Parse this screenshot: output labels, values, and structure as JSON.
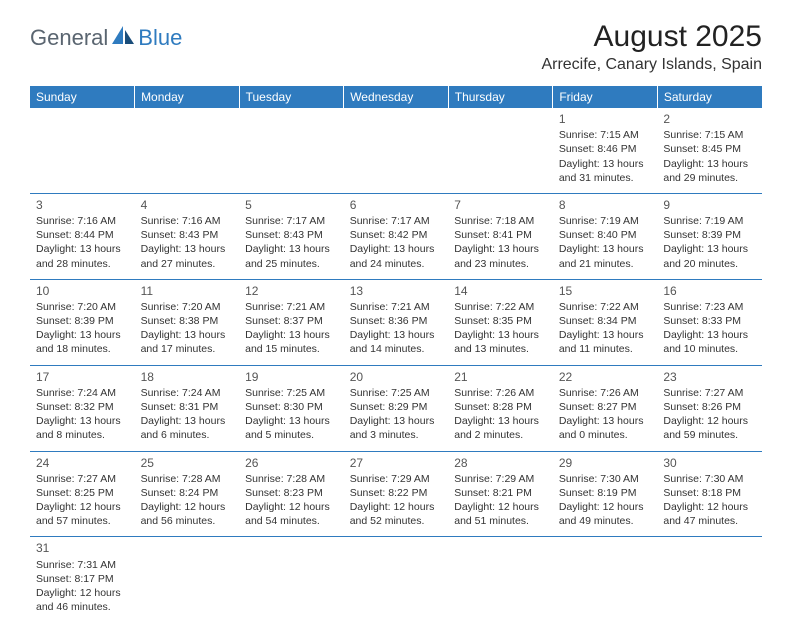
{
  "logo": {
    "text1": "General",
    "text2": "Blue"
  },
  "title": "August 2025",
  "location": "Arrecife, Canary Islands, Spain",
  "colors": {
    "header_bg": "#2f7bbf",
    "header_text": "#ffffff",
    "border": "#2f7bbf"
  },
  "weekdays": [
    "Sunday",
    "Monday",
    "Tuesday",
    "Wednesday",
    "Thursday",
    "Friday",
    "Saturday"
  ],
  "weeks": [
    [
      null,
      null,
      null,
      null,
      null,
      {
        "n": "1",
        "sr": "Sunrise: 7:15 AM",
        "ss": "Sunset: 8:46 PM",
        "d1": "Daylight: 13 hours",
        "d2": "and 31 minutes."
      },
      {
        "n": "2",
        "sr": "Sunrise: 7:15 AM",
        "ss": "Sunset: 8:45 PM",
        "d1": "Daylight: 13 hours",
        "d2": "and 29 minutes."
      }
    ],
    [
      {
        "n": "3",
        "sr": "Sunrise: 7:16 AM",
        "ss": "Sunset: 8:44 PM",
        "d1": "Daylight: 13 hours",
        "d2": "and 28 minutes."
      },
      {
        "n": "4",
        "sr": "Sunrise: 7:16 AM",
        "ss": "Sunset: 8:43 PM",
        "d1": "Daylight: 13 hours",
        "d2": "and 27 minutes."
      },
      {
        "n": "5",
        "sr": "Sunrise: 7:17 AM",
        "ss": "Sunset: 8:43 PM",
        "d1": "Daylight: 13 hours",
        "d2": "and 25 minutes."
      },
      {
        "n": "6",
        "sr": "Sunrise: 7:17 AM",
        "ss": "Sunset: 8:42 PM",
        "d1": "Daylight: 13 hours",
        "d2": "and 24 minutes."
      },
      {
        "n": "7",
        "sr": "Sunrise: 7:18 AM",
        "ss": "Sunset: 8:41 PM",
        "d1": "Daylight: 13 hours",
        "d2": "and 23 minutes."
      },
      {
        "n": "8",
        "sr": "Sunrise: 7:19 AM",
        "ss": "Sunset: 8:40 PM",
        "d1": "Daylight: 13 hours",
        "d2": "and 21 minutes."
      },
      {
        "n": "9",
        "sr": "Sunrise: 7:19 AM",
        "ss": "Sunset: 8:39 PM",
        "d1": "Daylight: 13 hours",
        "d2": "and 20 minutes."
      }
    ],
    [
      {
        "n": "10",
        "sr": "Sunrise: 7:20 AM",
        "ss": "Sunset: 8:39 PM",
        "d1": "Daylight: 13 hours",
        "d2": "and 18 minutes."
      },
      {
        "n": "11",
        "sr": "Sunrise: 7:20 AM",
        "ss": "Sunset: 8:38 PM",
        "d1": "Daylight: 13 hours",
        "d2": "and 17 minutes."
      },
      {
        "n": "12",
        "sr": "Sunrise: 7:21 AM",
        "ss": "Sunset: 8:37 PM",
        "d1": "Daylight: 13 hours",
        "d2": "and 15 minutes."
      },
      {
        "n": "13",
        "sr": "Sunrise: 7:21 AM",
        "ss": "Sunset: 8:36 PM",
        "d1": "Daylight: 13 hours",
        "d2": "and 14 minutes."
      },
      {
        "n": "14",
        "sr": "Sunrise: 7:22 AM",
        "ss": "Sunset: 8:35 PM",
        "d1": "Daylight: 13 hours",
        "d2": "and 13 minutes."
      },
      {
        "n": "15",
        "sr": "Sunrise: 7:22 AM",
        "ss": "Sunset: 8:34 PM",
        "d1": "Daylight: 13 hours",
        "d2": "and 11 minutes."
      },
      {
        "n": "16",
        "sr": "Sunrise: 7:23 AM",
        "ss": "Sunset: 8:33 PM",
        "d1": "Daylight: 13 hours",
        "d2": "and 10 minutes."
      }
    ],
    [
      {
        "n": "17",
        "sr": "Sunrise: 7:24 AM",
        "ss": "Sunset: 8:32 PM",
        "d1": "Daylight: 13 hours",
        "d2": "and 8 minutes."
      },
      {
        "n": "18",
        "sr": "Sunrise: 7:24 AM",
        "ss": "Sunset: 8:31 PM",
        "d1": "Daylight: 13 hours",
        "d2": "and 6 minutes."
      },
      {
        "n": "19",
        "sr": "Sunrise: 7:25 AM",
        "ss": "Sunset: 8:30 PM",
        "d1": "Daylight: 13 hours",
        "d2": "and 5 minutes."
      },
      {
        "n": "20",
        "sr": "Sunrise: 7:25 AM",
        "ss": "Sunset: 8:29 PM",
        "d1": "Daylight: 13 hours",
        "d2": "and 3 minutes."
      },
      {
        "n": "21",
        "sr": "Sunrise: 7:26 AM",
        "ss": "Sunset: 8:28 PM",
        "d1": "Daylight: 13 hours",
        "d2": "and 2 minutes."
      },
      {
        "n": "22",
        "sr": "Sunrise: 7:26 AM",
        "ss": "Sunset: 8:27 PM",
        "d1": "Daylight: 13 hours",
        "d2": "and 0 minutes."
      },
      {
        "n": "23",
        "sr": "Sunrise: 7:27 AM",
        "ss": "Sunset: 8:26 PM",
        "d1": "Daylight: 12 hours",
        "d2": "and 59 minutes."
      }
    ],
    [
      {
        "n": "24",
        "sr": "Sunrise: 7:27 AM",
        "ss": "Sunset: 8:25 PM",
        "d1": "Daylight: 12 hours",
        "d2": "and 57 minutes."
      },
      {
        "n": "25",
        "sr": "Sunrise: 7:28 AM",
        "ss": "Sunset: 8:24 PM",
        "d1": "Daylight: 12 hours",
        "d2": "and 56 minutes."
      },
      {
        "n": "26",
        "sr": "Sunrise: 7:28 AM",
        "ss": "Sunset: 8:23 PM",
        "d1": "Daylight: 12 hours",
        "d2": "and 54 minutes."
      },
      {
        "n": "27",
        "sr": "Sunrise: 7:29 AM",
        "ss": "Sunset: 8:22 PM",
        "d1": "Daylight: 12 hours",
        "d2": "and 52 minutes."
      },
      {
        "n": "28",
        "sr": "Sunrise: 7:29 AM",
        "ss": "Sunset: 8:21 PM",
        "d1": "Daylight: 12 hours",
        "d2": "and 51 minutes."
      },
      {
        "n": "29",
        "sr": "Sunrise: 7:30 AM",
        "ss": "Sunset: 8:19 PM",
        "d1": "Daylight: 12 hours",
        "d2": "and 49 minutes."
      },
      {
        "n": "30",
        "sr": "Sunrise: 7:30 AM",
        "ss": "Sunset: 8:18 PM",
        "d1": "Daylight: 12 hours",
        "d2": "and 47 minutes."
      }
    ],
    [
      {
        "n": "31",
        "sr": "Sunrise: 7:31 AM",
        "ss": "Sunset: 8:17 PM",
        "d1": "Daylight: 12 hours",
        "d2": "and 46 minutes."
      },
      null,
      null,
      null,
      null,
      null,
      null
    ]
  ]
}
